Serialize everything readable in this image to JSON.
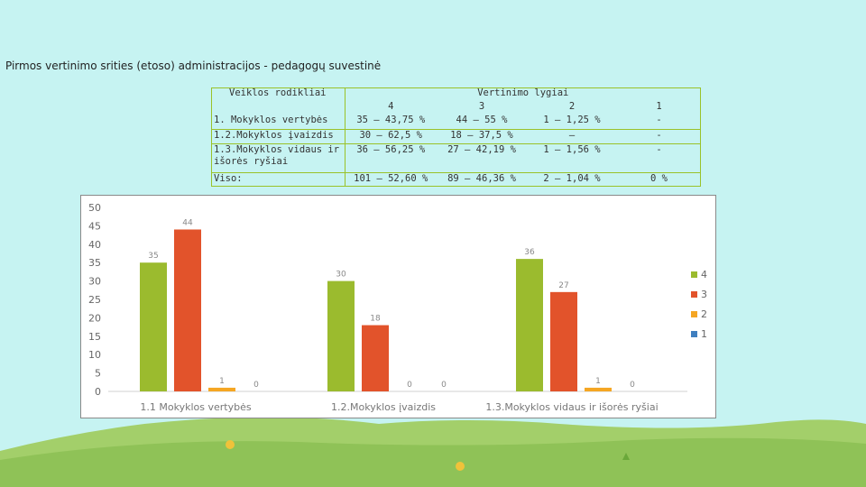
{
  "title": "Pirmos vertinimo srities (etoso) administracijos - pedagogų suvestinė",
  "table": {
    "header_left": "Veiklos rodikliai",
    "header_right": "Vertinimo lygiai",
    "levels": [
      "4",
      "3",
      "2",
      "1"
    ],
    "rows": [
      {
        "label": "1.    Mokyklos  vertybės",
        "cells": [
          "35 – 43,75 %",
          "44 – 55 %",
          "1 – 1,25 %",
          "-"
        ]
      },
      {
        "label": "1.2.Mokyklos  įvaizdis",
        "cells": [
          "30 – 62,5 %",
          "18 – 37,5 %",
          "–",
          "-"
        ]
      },
      {
        "label": "1.3.Mokyklos  vidaus  ir išorės  ryšiai",
        "cells": [
          "36 – 56,25 %",
          "27 – 42,19 %",
          "1 – 1,56 %",
          "-"
        ]
      },
      {
        "label": "Viso:",
        "cells": [
          "101 – 52,60 %",
          "89 – 46,36 %",
          "2 – 1,04 %",
          "0 %"
        ]
      }
    ]
  },
  "colors": {
    "series_4": "#9bbb2e",
    "series_3": "#e2532b",
    "series_2": "#f5a623",
    "series_1": "#3f7fbf",
    "border": "#9ac22a"
  },
  "chart_data": {
    "type": "bar",
    "categories": [
      "1.1     Mokyklos  vertybės",
      "1.2.Mokyklos  įvaizdis",
      "1.3.Mokyklos  vidaus  ir  išorės  ryšiai"
    ],
    "series": [
      {
        "name": "4",
        "values": [
          35,
          30,
          36
        ]
      },
      {
        "name": "3",
        "values": [
          44,
          18,
          27
        ]
      },
      {
        "name": "2",
        "values": [
          1,
          0,
          1
        ]
      },
      {
        "name": "1",
        "values": [
          0,
          0,
          0
        ]
      }
    ],
    "ylim": [
      0,
      50
    ],
    "yticks": [
      0,
      5,
      10,
      15,
      20,
      25,
      30,
      35,
      40,
      45,
      50
    ],
    "grid": false,
    "legend": "right"
  }
}
